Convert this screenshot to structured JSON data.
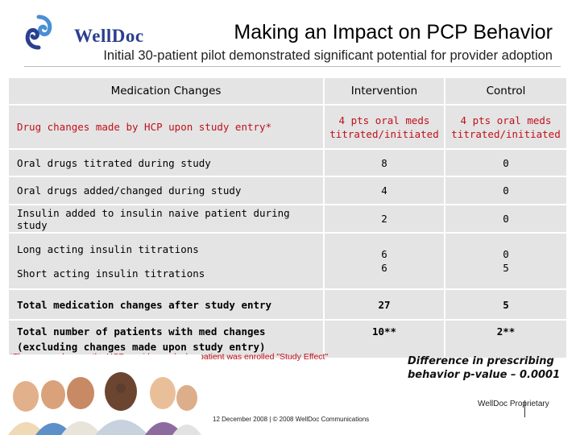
{
  "header": {
    "logo_text": "WellDoc",
    "title": "Making an Impact on PCP Behavior",
    "subtitle": "Initial 30-patient pilot demonstrated significant potential for provider adoption"
  },
  "table": {
    "columns": [
      "Medication Changes",
      "Intervention",
      "Control"
    ],
    "entry_row": {
      "label": "Drug changes made by HCP upon study entry*",
      "intervention": [
        "4 pts oral meds",
        "titrated/initiated"
      ],
      "control": [
        "4 pts oral meds",
        "titrated/initiated"
      ]
    },
    "rows": [
      {
        "label": "Oral drugs titrated during study",
        "intervention": "8",
        "control": "0"
      },
      {
        "label": "Oral drugs added/changed during study",
        "intervention": "4",
        "control": "0"
      },
      {
        "label": "Insulin added to insulin naive patient during study",
        "intervention": "2",
        "control": "0"
      },
      {
        "label": "Long acting insulin titrations",
        "intervention": "6",
        "control": "0"
      },
      {
        "label": "Short acting insulin titrations",
        "intervention": "6",
        "control": "5"
      }
    ],
    "total_row": {
      "label": "Total medication changes after study entry",
      "intervention": "27",
      "control": "5"
    },
    "patients_row": {
      "label": [
        "Total number of patients with med changes",
        "(excluding changes made upon study entry)"
      ],
      "intervention": "10**",
      "control": "2**"
    }
  },
  "footnote": "*There were changes the HCP provider made day patient was enrolled \"Study Effect\"",
  "pvalue": [
    "Difference in prescribing",
    "behavior p-value – 0.0001"
  ],
  "footer": {
    "proprietary": "WellDoc Proprietary",
    "copyright": "12 December 2008 | © 2008 WellDoc Communications"
  },
  "colors": {
    "brand_blue": "#2a3f8f",
    "accent_red": "#c0101a",
    "cell_gray": "#e4e4e4"
  }
}
